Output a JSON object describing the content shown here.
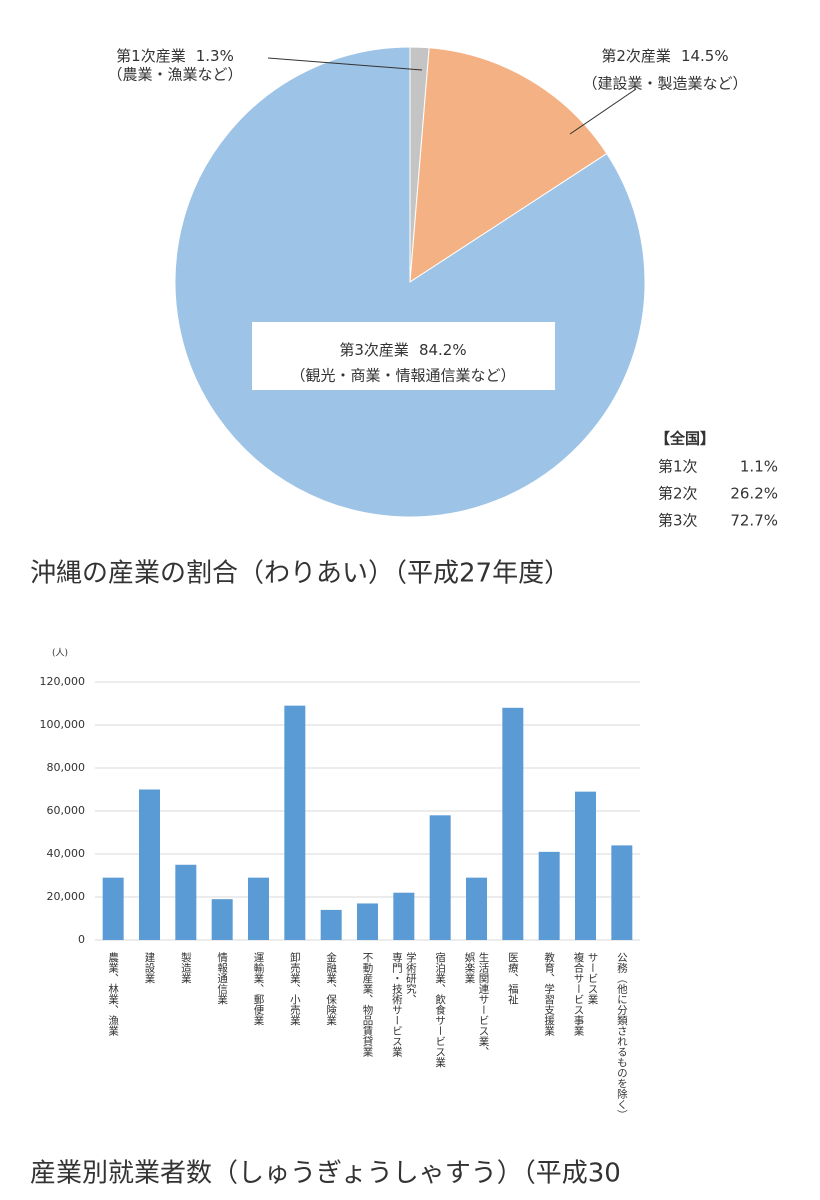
{
  "chart_data": [
    {
      "type": "pie",
      "categories": [
        "第1次産業",
        "第2次産業",
        "第3次産業"
      ],
      "descriptions": [
        "（農業・漁業など）",
        "（建設業・製造業など）",
        "（観光・商業・情報通信業など）"
      ],
      "values": [
        1.3,
        14.5,
        84.2
      ],
      "value_labels": [
        "1.3%",
        "14.5%",
        "84.2%"
      ],
      "colors": [
        "#c4c4c4",
        "#f4b183",
        "#9dc3e6"
      ],
      "annotation": {
        "title": "【全国】",
        "rows": [
          {
            "label": "第1次",
            "value": 1.1,
            "value_label": "1.1%"
          },
          {
            "label": "第2次",
            "value": 26.2,
            "value_label": "26.2%"
          },
          {
            "label": "第3次",
            "value": 72.7,
            "value_label": "72.7%"
          }
        ]
      }
    },
    {
      "type": "bar",
      "ylabel": "(人)",
      "categories": [
        [
          "農業、林業、漁業"
        ],
        [
          "建設業"
        ],
        [
          "製造業"
        ],
        [
          "情報通信業"
        ],
        [
          "運輸業、郵便業"
        ],
        [
          "卸売業、小売業"
        ],
        [
          "金融業、保険業"
        ],
        [
          "不動産業、物品賃貸業"
        ],
        [
          "学術研究、",
          "専門・技術サービス業"
        ],
        [
          "宿泊業、飲食サービス業"
        ],
        [
          "生活関連サービス業、",
          "娯楽業"
        ],
        [
          "医療、福祉"
        ],
        [
          "教育、学習支援業"
        ],
        [
          "サービス業",
          "複合サービス事業"
        ],
        [
          "公務（他に分類されるものを除く）"
        ]
      ],
      "values": [
        29000,
        70000,
        35000,
        19000,
        29000,
        109000,
        14000,
        17000,
        22000,
        58000,
        29000,
        108000,
        41000,
        69000,
        44000
      ],
      "color": "#5b9bd5",
      "ylim": [
        0,
        120000
      ],
      "yticks": [
        0,
        {
          "value": 20000,
          "label": "20,000"
        },
        {
          "value": 40000,
          "label": "40,000"
        },
        {
          "value": 60000,
          "label": "60,000"
        },
        {
          "value": 80000,
          "label": "80,000"
        },
        {
          "value": 100000,
          "label": "100,000"
        },
        {
          "value": 120000,
          "label": "120,000"
        }
      ],
      "grid": true
    }
  ],
  "captions": [
    "沖縄の産業の割合（わりあい）（平成27年度）",
    "産業別就業者数（しゅうぎょうしゃすう）（平成30"
  ]
}
